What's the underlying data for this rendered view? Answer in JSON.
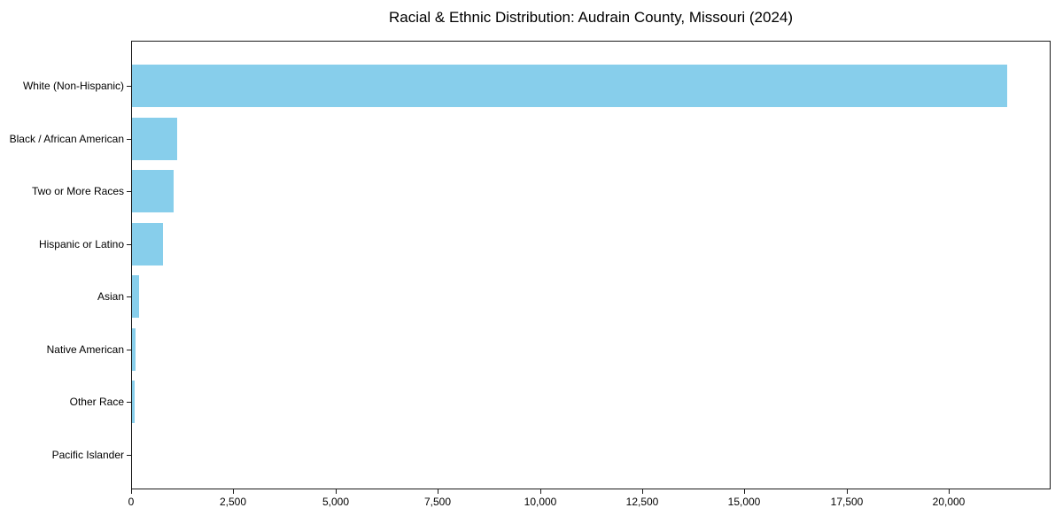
{
  "chart_data": {
    "type": "bar",
    "orientation": "horizontal",
    "title": "Racial & Ethnic Distribution: Audrain County, Missouri (2024)",
    "xlabel": "",
    "ylabel": "",
    "categories": [
      "White (Non-Hispanic)",
      "Black / African American",
      "Two or More Races",
      "Hispanic or Latino",
      "Asian",
      "Native American",
      "Other Race",
      "Pacific Islander"
    ],
    "values": [
      21400,
      1095,
      1020,
      755,
      180,
      85,
      75,
      10
    ],
    "xlim": [
      0,
      22490
    ],
    "x_ticks": [
      0,
      2500,
      5000,
      7500,
      10000,
      12500,
      15000,
      17500,
      20000
    ],
    "x_tick_labels": [
      "0",
      "2,500",
      "5,000",
      "7,500",
      "10,000",
      "12,500",
      "15,000",
      "17,500",
      "20,000"
    ],
    "bar_color": "#87CEEB",
    "spine_color": "#1a1a1a",
    "text_color": "#000000",
    "background_color": "#ffffff",
    "grid": false,
    "legend": null
  }
}
